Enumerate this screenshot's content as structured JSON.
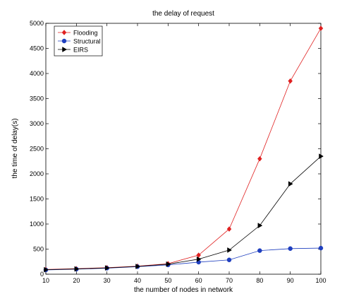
{
  "chart_data": {
    "type": "line",
    "title": "the delay of request",
    "xlabel": "the number of nodes in network",
    "ylabel": "the time of delay(s)",
    "x": [
      10,
      20,
      30,
      40,
      50,
      60,
      70,
      80,
      90,
      100
    ],
    "xlim": [
      10,
      100
    ],
    "ylim": [
      0,
      5000
    ],
    "xticks": [
      "10",
      "20",
      "30",
      "40",
      "50",
      "60",
      "70",
      "80",
      "90",
      "100"
    ],
    "yticks": [
      "0",
      "500",
      "1000",
      "1500",
      "2000",
      "2500",
      "3000",
      "3500",
      "4000",
      "4500",
      "5000"
    ],
    "grid": false,
    "legend_position": "top-left",
    "series": [
      {
        "name": "Flooding",
        "marker": "diamond",
        "color": "#e02020",
        "values": [
          95,
          110,
          130,
          160,
          210,
          380,
          900,
          2300,
          3850,
          4900
        ]
      },
      {
        "name": "Structural",
        "marker": "circle",
        "color": "#1f3fbf",
        "values": [
          85,
          100,
          120,
          150,
          185,
          240,
          285,
          470,
          510,
          520
        ]
      },
      {
        "name": "EIRS",
        "marker": "triangle-right",
        "color": "#000000",
        "values": [
          90,
          105,
          125,
          155,
          200,
          300,
          480,
          970,
          1800,
          2350
        ]
      }
    ]
  }
}
